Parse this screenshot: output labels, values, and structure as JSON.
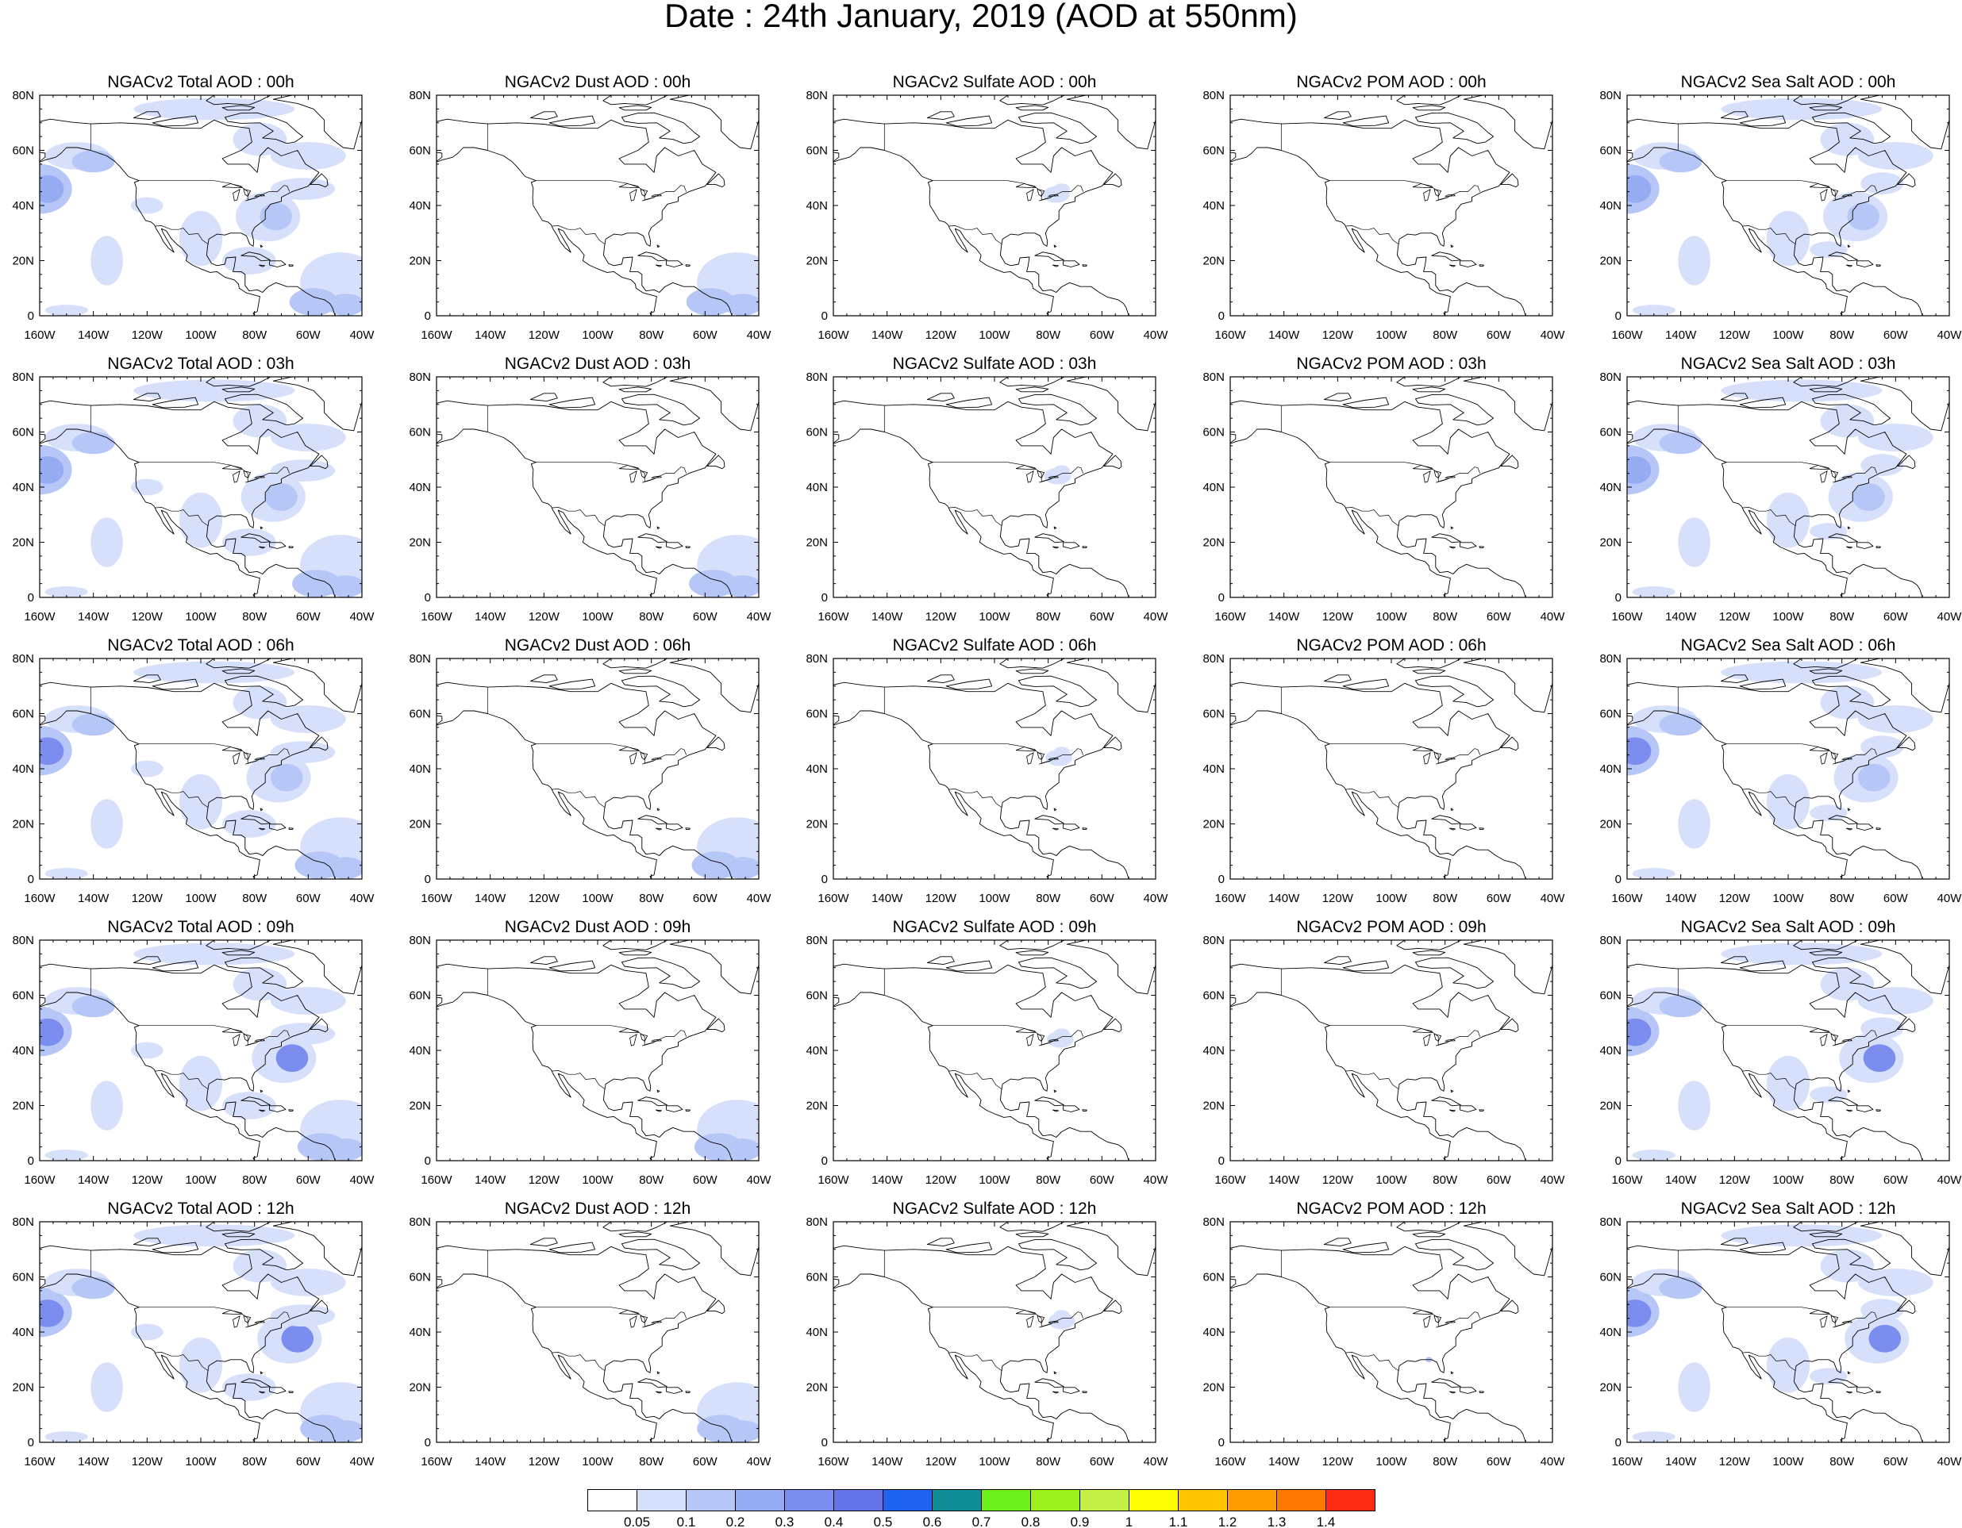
{
  "title": "Date : 24th January, 2019 (AOD at 550nm)",
  "rows": [
    {
      "hour": "00h",
      "titles": [
        "NGACv2 Total AOD : 00h",
        "NGACv2 Dust AOD : 00h",
        "NGACv2 Sulfate AOD : 00h",
        "NGACv2 POM AOD : 00h",
        "NGACv2 Sea Salt AOD : 00h"
      ]
    },
    {
      "hour": "03h",
      "titles": [
        "NGACv2 Total AOD : 03h",
        "NGACv2 Dust AOD : 03h",
        "NGACv2 Sulfate AOD : 03h",
        "NGACv2 POM AOD : 03h",
        "NGACv2 Sea Salt AOD : 03h"
      ]
    },
    {
      "hour": "06h",
      "titles": [
        "NGACv2 Total AOD : 06h",
        "NGACv2 Dust AOD : 06h",
        "NGACv2 Sulfate AOD : 06h",
        "NGACv2 POM AOD : 06h",
        "NGACv2 Sea Salt AOD : 06h"
      ]
    },
    {
      "hour": "09h",
      "titles": [
        "NGACv2 Total AOD : 09h",
        "NGACv2 Dust AOD : 09h",
        "NGACv2 Sulfate AOD : 09h",
        "NGACv2 POM AOD : 09h",
        "NGACv2 Sea Salt  AOD : 09h"
      ]
    },
    {
      "hour": "12h",
      "titles": [
        "NGACv2 Total AOD  : 12h",
        "NGACv2 Dust AOD : 12h",
        "NGACv2 Sulfate AOD : 12h",
        "NGACv2 POM  AOD : 12h",
        "NGACv2 Sea Salt  AOD : 12h"
      ]
    }
  ],
  "map": {
    "x_ticks": [
      "160W",
      "140W",
      "120W",
      "100W",
      "80W",
      "60W",
      "40W"
    ],
    "y_ticks": [
      "0",
      "20N",
      "40N",
      "60N",
      "80N"
    ],
    "lon_range": [
      -160,
      -40
    ],
    "lat_range": [
      0,
      80
    ]
  },
  "colorbar": {
    "labels": [
      "0.05",
      "0.1",
      "0.2",
      "0.3",
      "0.4",
      "0.5",
      "0.6",
      "0.7",
      "0.8",
      "0.9",
      "1",
      "1.1",
      "1.2",
      "1.3",
      "1.4"
    ],
    "colors": [
      "#ffffff",
      "#d6e0fa",
      "#b6c6f6",
      "#96acf2",
      "#7b8ef0",
      "#6674ea",
      "#1f64f0",
      "#108c94",
      "#6cf01c",
      "#9cf01c",
      "#c4f046",
      "#ffff00",
      "#ffc400",
      "#ff9c00",
      "#ff7800",
      "#ff2c14"
    ]
  },
  "aod_field": {
    "level_fill": {
      "low": "#d6e0fa",
      "mid": "#b6c6f6",
      "high": "#96acf2",
      "peak": "#7b8ef0"
    },
    "species": [
      "total",
      "dust",
      "sulfate",
      "pom",
      "seasalt"
    ]
  }
}
